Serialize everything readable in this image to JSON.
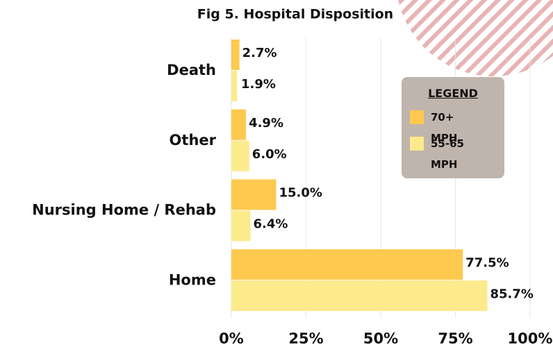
{
  "chart_data": {
    "type": "bar",
    "orientation": "horizontal",
    "title": "Fig 5. Hospital Disposition",
    "categories": [
      "Death",
      "Other",
      "Nursing Home / Rehab",
      "Home"
    ],
    "series": [
      {
        "name": "70+ MPH",
        "color": "#fdc94f",
        "values": [
          2.7,
          4.9,
          15.0,
          77.5
        ],
        "value_labels": [
          "2.7%",
          "4.9%",
          "15.0%",
          "77.5%"
        ]
      },
      {
        "name": "55-65 MPH",
        "color": "#fdea8c",
        "values": [
          1.9,
          6.0,
          6.4,
          85.7
        ],
        "value_labels": [
          "1.9%",
          "6.0%",
          "6.4%",
          "85.7%"
        ]
      }
    ],
    "xlim": [
      0,
      100
    ],
    "xticks": [
      {
        "value": 0,
        "label": "0%"
      },
      {
        "value": 25,
        "label": "25%"
      },
      {
        "value": 50,
        "label": "50%"
      },
      {
        "value": 75,
        "label": "75%"
      },
      {
        "value": 100,
        "label": "100%"
      }
    ],
    "grid": true,
    "legend_title": "LEGEND",
    "legend": "upper right"
  }
}
